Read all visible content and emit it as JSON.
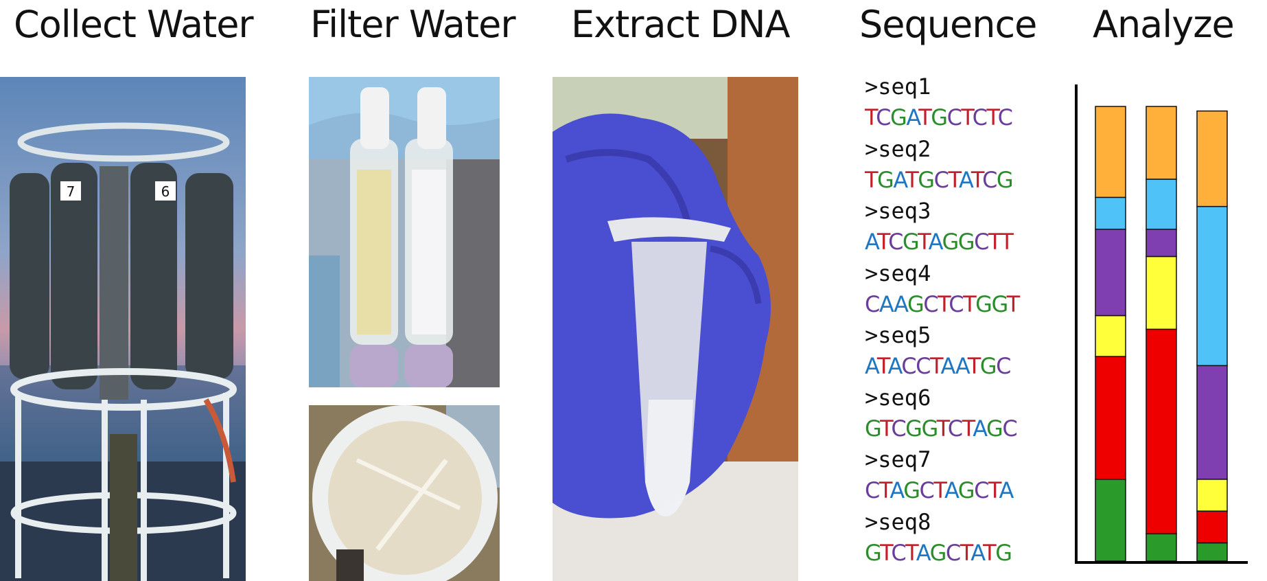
{
  "steps": [
    {
      "title": "Collect Water"
    },
    {
      "title": "Filter Water"
    },
    {
      "title": "Extract DNA"
    },
    {
      "title": "Sequence"
    },
    {
      "title": "Analyze"
    }
  ],
  "sequences": [
    {
      "header": ">seq1",
      "bases": "TCGATGCTCTC"
    },
    {
      "header": ">seq2",
      "bases": "TGATGCTATCG"
    },
    {
      "header": ">seq3",
      "bases": "ATCGTAGGCTT"
    },
    {
      "header": ">seq4",
      "bases": "CAAGCTCTGGT"
    },
    {
      "header": ">seq5",
      "bases": "ATACCTAATGC"
    },
    {
      "header": ">seq6",
      "bases": "GTCGGTCTAGC"
    },
    {
      "header": ">seq7",
      "bases": "CTAGCTAGCTA"
    },
    {
      "header": ">seq8",
      "bases": "GTCTAGCTATG"
    }
  ],
  "colors": {
    "A": "#1f77c4",
    "C": "#6a3d9a",
    "G": "#2a8c2a",
    "T": "#c0202a",
    "green": "#2a9a2a",
    "red": "#ee0000",
    "yellow": "#ffff3a",
    "purple": "#7f3fb0",
    "lightblue": "#4fc3f7",
    "orange": "#ffb03a"
  },
  "chart_data": {
    "type": "bar",
    "stacked": true,
    "categories": [
      "",
      "",
      ""
    ],
    "series": [
      {
        "color": "#2a9a2a",
        "values": [
          18,
          6,
          4
        ]
      },
      {
        "color": "#ee0000",
        "values": [
          27,
          45,
          7
        ]
      },
      {
        "color": "#ffff3a",
        "values": [
          9,
          16,
          7
        ]
      },
      {
        "color": "#7f3fb0",
        "values": [
          19,
          6,
          25
        ]
      },
      {
        "color": "#4fc3f7",
        "values": [
          7,
          11,
          35
        ]
      },
      {
        "color": "#ffb03a",
        "values": [
          20,
          16,
          21
        ]
      }
    ],
    "title": "",
    "xlabel": "",
    "ylabel": "",
    "ylim": [
      0,
      100
    ],
    "grid": false,
    "legend": "none"
  }
}
